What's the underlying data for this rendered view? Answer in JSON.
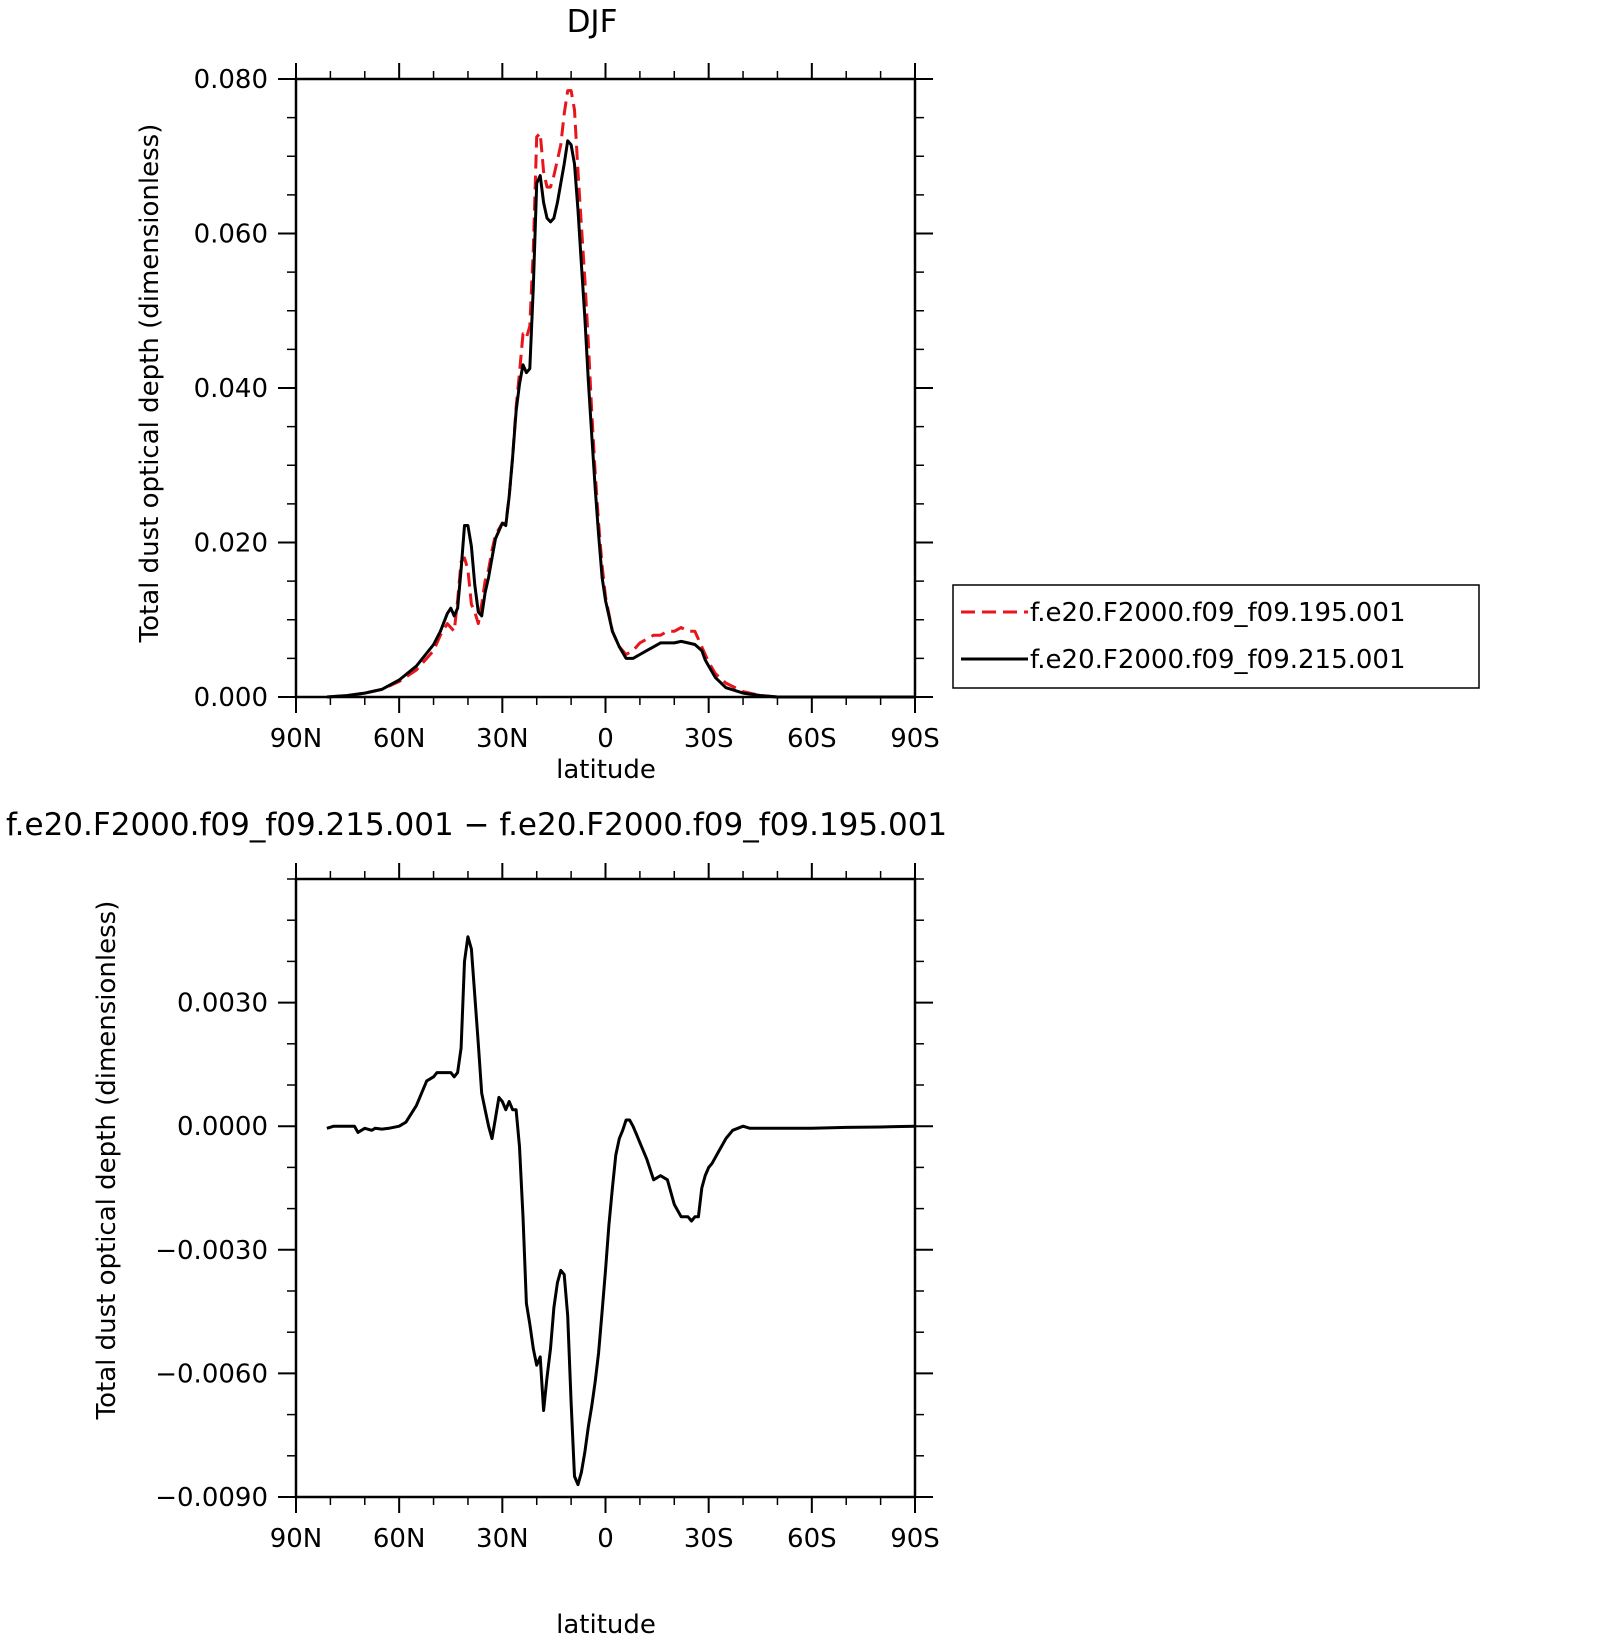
{
  "chart_data": [
    {
      "type": "line",
      "title": "DJF",
      "xlabel": "latitude",
      "ylabel": "Total dust optical depth (dimensionless)",
      "xlim": [
        90,
        -90
      ],
      "ylim": [
        0,
        0.08
      ],
      "xticks": [
        90,
        60,
        30,
        0,
        -30,
        -60,
        -90
      ],
      "xtick_labels": [
        "90N",
        "60N",
        "30N",
        "0",
        "30S",
        "60S",
        "90S"
      ],
      "yticks": [
        0,
        0.02,
        0.04,
        0.06,
        0.08
      ],
      "ytick_labels": [
        "0.000",
        "0.020",
        "0.040",
        "0.060",
        "0.080"
      ],
      "legend_position": "right",
      "series": [
        {
          "name": "f.e20.F2000.f09_f09.195.001",
          "color": "#e8161b",
          "dash": "dashed",
          "x": [
            81,
            75,
            70,
            65,
            60,
            55,
            50,
            48,
            46,
            44,
            43,
            42,
            41,
            40,
            39,
            38,
            37,
            36,
            35,
            34,
            33,
            32,
            30,
            29,
            28,
            27,
            26,
            25,
            24,
            23,
            22,
            21,
            20,
            19,
            18,
            17,
            16,
            15,
            14,
            13,
            12,
            11,
            10,
            9,
            8,
            7,
            6,
            5,
            4,
            3,
            2,
            1,
            0,
            -2,
            -4,
            -6,
            -8,
            -10,
            -12,
            -14,
            -16,
            -18,
            -20,
            -22,
            -24,
            -26,
            -28,
            -29,
            -30,
            -32,
            -35,
            -40,
            -45,
            -50,
            -60,
            -70,
            -80,
            -90
          ],
          "y": [
            0.0,
            0.0002,
            0.0005,
            0.001,
            0.002,
            0.0035,
            0.006,
            0.008,
            0.0095,
            0.0085,
            0.0125,
            0.0175,
            0.018,
            0.0165,
            0.012,
            0.011,
            0.0095,
            0.012,
            0.015,
            0.0165,
            0.019,
            0.021,
            0.0225,
            0.0225,
            0.026,
            0.031,
            0.0375,
            0.042,
            0.047,
            0.0465,
            0.048,
            0.058,
            0.0725,
            0.073,
            0.068,
            0.066,
            0.066,
            0.0675,
            0.0695,
            0.0715,
            0.0755,
            0.0785,
            0.0785,
            0.076,
            0.068,
            0.061,
            0.054,
            0.046,
            0.037,
            0.029,
            0.0225,
            0.017,
            0.013,
            0.0085,
            0.0065,
            0.0055,
            0.006,
            0.007,
            0.0075,
            0.008,
            0.008,
            0.0085,
            0.0085,
            0.009,
            0.0085,
            0.0085,
            0.0065,
            0.0055,
            0.0045,
            0.003,
            0.0018,
            0.0007,
            0.0002,
            0.0,
            0.0,
            0.0,
            0.0,
            0.0
          ]
        },
        {
          "name": "f.e20.F2000.f09_f09.215.001",
          "color": "#000000",
          "dash": "solid",
          "x": [
            81,
            75,
            70,
            65,
            60,
            55,
            50,
            48,
            46,
            45,
            44,
            43,
            42,
            41,
            40,
            39,
            38,
            37,
            36,
            35,
            34,
            33,
            32,
            30,
            29,
            28,
            27,
            26,
            25,
            24,
            23,
            22,
            21,
            20,
            19,
            18,
            17,
            16,
            15,
            14,
            13,
            12,
            11,
            10,
            9,
            8,
            7,
            6,
            5,
            4,
            3,
            2,
            1,
            0,
            -2,
            -4,
            -6,
            -8,
            -10,
            -12,
            -14,
            -16,
            -18,
            -20,
            -22,
            -24,
            -26,
            -28,
            -29,
            -30,
            -32,
            -35,
            -40,
            -45,
            -50,
            -60,
            -70,
            -80,
            -90
          ],
          "y": [
            0.0,
            0.0002,
            0.0005,
            0.001,
            0.0022,
            0.004,
            0.0068,
            0.0085,
            0.0108,
            0.0115,
            0.0105,
            0.0115,
            0.0165,
            0.0222,
            0.0222,
            0.0195,
            0.0145,
            0.011,
            0.0105,
            0.0135,
            0.0155,
            0.018,
            0.0205,
            0.0225,
            0.0222,
            0.026,
            0.031,
            0.037,
            0.0405,
            0.043,
            0.042,
            0.0425,
            0.053,
            0.0665,
            0.0675,
            0.064,
            0.062,
            0.0615,
            0.062,
            0.064,
            0.0665,
            0.069,
            0.072,
            0.0715,
            0.069,
            0.063,
            0.056,
            0.049,
            0.041,
            0.034,
            0.027,
            0.021,
            0.0155,
            0.0125,
            0.0085,
            0.0065,
            0.005,
            0.005,
            0.0055,
            0.006,
            0.0065,
            0.007,
            0.007,
            0.007,
            0.0072,
            0.007,
            0.0068,
            0.006,
            0.0048,
            0.004,
            0.0025,
            0.0012,
            0.0005,
            0.0002,
            0.0,
            0.0,
            0.0,
            0.0,
            0.0
          ]
        }
      ]
    },
    {
      "type": "line",
      "title": "f.e20.F2000.f09_f09.215.001 − f.e20.F2000.f09_f09.195.001",
      "xlabel": "latitude",
      "ylabel": "Total dust optical depth (dimensionless)",
      "xlim": [
        90,
        -90
      ],
      "ylim": [
        -0.009,
        0.006
      ],
      "xticks": [
        90,
        60,
        30,
        0,
        -30,
        -60,
        -90
      ],
      "xtick_labels": [
        "90N",
        "60N",
        "30N",
        "0",
        "30S",
        "60S",
        "90S"
      ],
      "yticks": [
        -0.009,
        -0.006,
        -0.003,
        0.0,
        0.003
      ],
      "ytick_labels": [
        "−0.0090",
        "−0.0060",
        "−0.0030",
        "0.0000",
        "0.0030"
      ],
      "series": [
        {
          "name": "",
          "color": "#000000",
          "dash": "solid",
          "x": [
            81,
            79,
            76,
            73,
            72,
            70,
            68,
            67,
            65,
            63,
            60,
            58,
            55,
            52,
            50,
            49,
            47,
            45,
            44,
            43,
            42,
            41,
            40,
            39,
            37,
            36,
            35,
            34,
            33,
            32,
            31,
            30,
            29,
            28,
            27,
            26,
            25,
            24,
            23,
            22,
            21,
            20,
            19,
            18,
            17,
            16,
            15,
            14,
            13,
            12,
            11,
            10,
            9,
            8,
            7,
            6,
            5,
            4,
            3,
            2,
            1,
            0,
            -1,
            -2,
            -3,
            -4,
            -5,
            -6,
            -7,
            -8,
            -9,
            -10,
            -12,
            -14,
            -16,
            -18,
            -20,
            -22,
            -24,
            -25,
            -26,
            -27,
            -28,
            -29,
            -30,
            -31,
            -33,
            -35,
            -37,
            -40,
            -42,
            -44,
            -45,
            -50,
            -60,
            -70,
            -80,
            -90
          ],
          "y": [
            -5e-05,
            0.0,
            0.0,
            0.0,
            -0.00015,
            -5e-05,
            -0.0001,
            -5e-05,
            -7e-05,
            -5e-05,
            0.0,
            0.0001,
            0.0005,
            0.0011,
            0.0012,
            0.0013,
            0.0013,
            0.0013,
            0.0012,
            0.0013,
            0.0019,
            0.004,
            0.0046,
            0.0043,
            0.002,
            0.0008,
            0.0004,
            0.0,
            -0.0003,
            0.0002,
            0.0007,
            0.0006,
            0.0004,
            0.0006,
            0.0004,
            0.0004,
            -0.0005,
            -0.0022,
            -0.0043,
            -0.0048,
            -0.0054,
            -0.0058,
            -0.0056,
            -0.0069,
            -0.0061,
            -0.0054,
            -0.0044,
            -0.0038,
            -0.0035,
            -0.0036,
            -0.0046,
            -0.0067,
            -0.0085,
            -0.0087,
            -0.0084,
            -0.0079,
            -0.0073,
            -0.0068,
            -0.0062,
            -0.0055,
            -0.0045,
            -0.0035,
            -0.0024,
            -0.0015,
            -0.0007,
            -0.0003,
            -0.0001,
            0.00015,
            0.00015,
            0.0,
            -0.0002,
            -0.0004,
            -0.0008,
            -0.0013,
            -0.0012,
            -0.0013,
            -0.0019,
            -0.0022,
            -0.0022,
            -0.0023,
            -0.0022,
            -0.0022,
            -0.0015,
            -0.0012,
            -0.001,
            -0.0009,
            -0.0006,
            -0.0003,
            -0.0001,
            0.0,
            -5e-05,
            -5e-05,
            -5e-05,
            -5e-05,
            -5e-05,
            -3e-05,
            -2e-05,
            0.0
          ]
        }
      ]
    }
  ]
}
